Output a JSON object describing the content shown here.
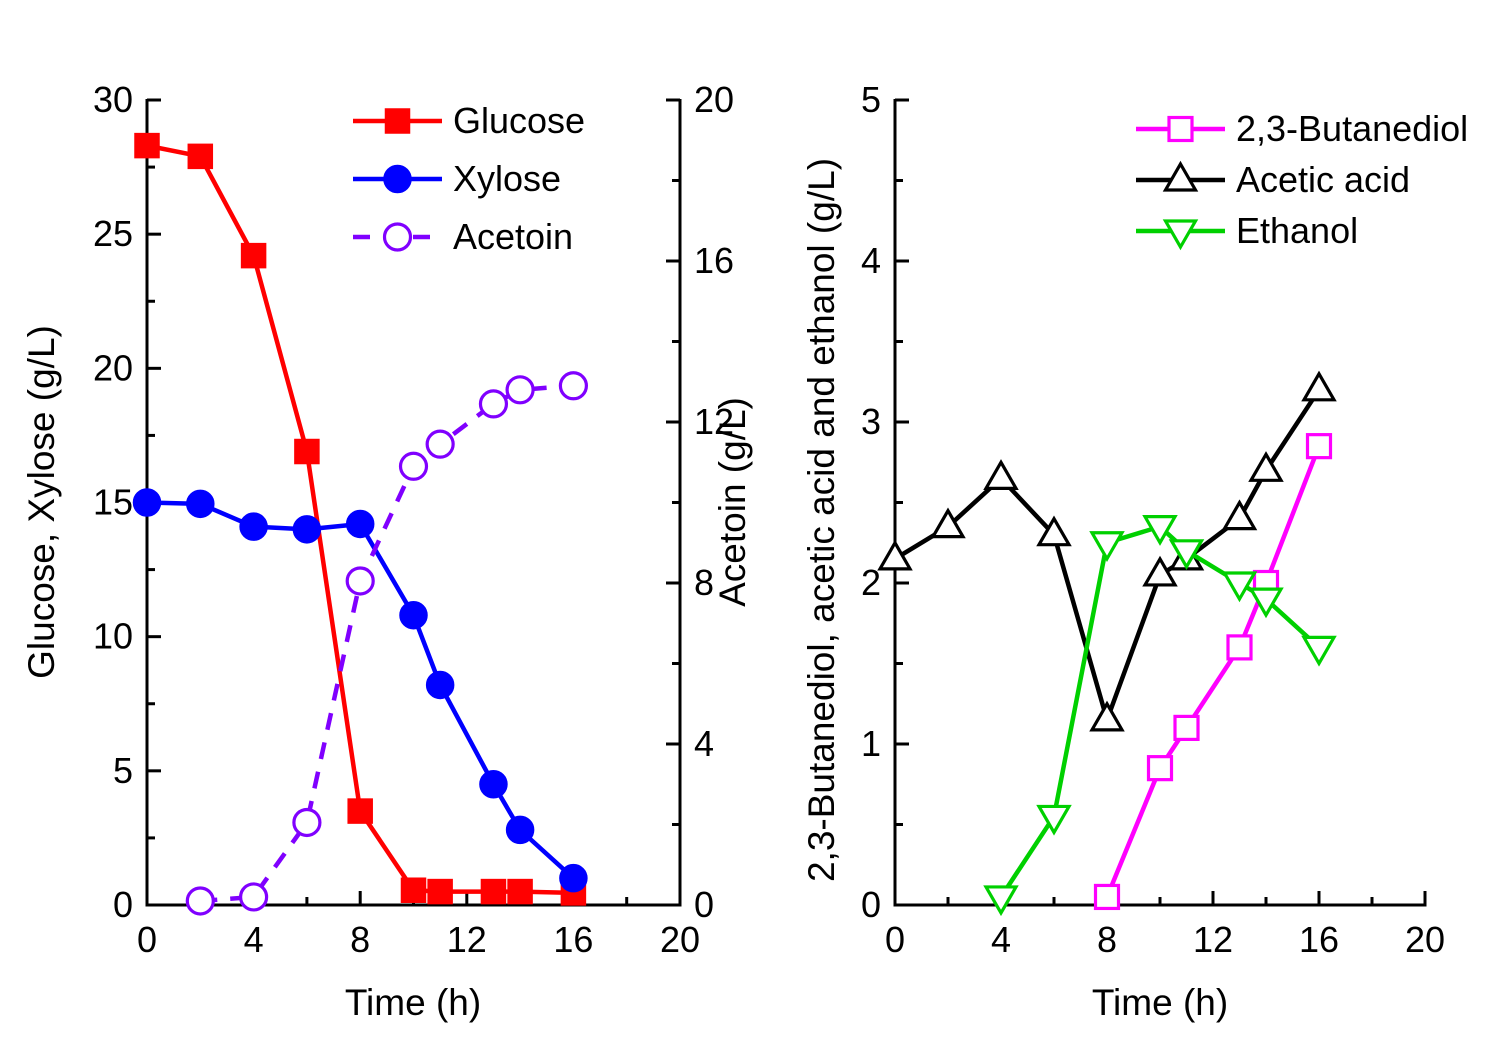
{
  "chart_data": [
    {
      "type": "line",
      "panel": "left",
      "title": "",
      "xlabel": "Time (h)",
      "ylabel_left": "Glucose, Xylose (g/L)",
      "ylabel_right": "Acetoin (g/L)",
      "xlim": [
        0,
        20
      ],
      "xticks": [
        0,
        4,
        8,
        12,
        16,
        20
      ],
      "ylim_left": [
        0,
        30
      ],
      "yticks_left": [
        0,
        5,
        10,
        15,
        20,
        25,
        30
      ],
      "ylim_right": [
        0,
        20
      ],
      "yticks_right": [
        0,
        4,
        8,
        12,
        16,
        20
      ],
      "grid": false,
      "legend_position": "top-inside",
      "series": [
        {
          "name": "Glucose",
          "axis": "left",
          "color": "#ff0000",
          "marker": "square",
          "fill": "filled",
          "line": "solid",
          "x": [
            0,
            2,
            4,
            6,
            8,
            10,
            11,
            13,
            14,
            16
          ],
          "y": [
            28.3,
            27.9,
            24.2,
            16.9,
            3.5,
            0.55,
            0.5,
            0.5,
            0.5,
            0.45
          ]
        },
        {
          "name": "Xylose",
          "axis": "left",
          "color": "#0000ff",
          "marker": "circle",
          "fill": "filled",
          "line": "solid",
          "x": [
            0,
            2,
            4,
            6,
            8,
            10,
            11,
            13,
            14,
            16
          ],
          "y": [
            15.0,
            14.95,
            14.1,
            14.0,
            14.2,
            10.8,
            8.2,
            4.5,
            2.8,
            1.0
          ]
        },
        {
          "name": "Acetoin",
          "axis": "right",
          "color": "#8000ff",
          "marker": "circle",
          "fill": "open",
          "line": "dashed",
          "x": [
            2,
            4,
            6,
            8,
            10,
            11,
            13,
            14,
            16
          ],
          "y": [
            0.1,
            0.2,
            2.05,
            8.05,
            10.9,
            11.45,
            12.45,
            12.8,
            12.9
          ]
        }
      ]
    },
    {
      "type": "line",
      "panel": "right",
      "title": "",
      "xlabel": "Time (h)",
      "ylabel_left": "2,3-Butanediol, acetic acid and ethanol (g/L)",
      "xlim": [
        0,
        20
      ],
      "xticks": [
        0,
        4,
        8,
        12,
        16,
        20
      ],
      "ylim_left": [
        0,
        5
      ],
      "yticks_left": [
        0,
        1,
        2,
        3,
        4,
        5
      ],
      "grid": false,
      "legend_position": "top-inside",
      "series": [
        {
          "name": "2,3-Butanediol",
          "axis": "left",
          "color": "#ff00ff",
          "marker": "square",
          "fill": "open",
          "line": "solid",
          "x": [
            8,
            10,
            11,
            13,
            14,
            16
          ],
          "y": [
            0.05,
            0.85,
            1.1,
            1.6,
            2.0,
            2.85
          ]
        },
        {
          "name": "Acetic acid",
          "axis": "left",
          "color": "#000000",
          "marker": "triangle-up",
          "fill": "open",
          "line": "solid",
          "x": [
            0,
            2,
            4,
            6,
            8,
            10,
            11,
            13,
            14,
            16
          ],
          "y": [
            2.15,
            2.35,
            2.65,
            2.3,
            1.15,
            2.05,
            2.15,
            2.4,
            2.7,
            3.2
          ]
        },
        {
          "name": "Ethanol",
          "axis": "left",
          "color": "#00d000",
          "marker": "triangle-down",
          "fill": "open",
          "line": "solid",
          "x": [
            4,
            6,
            8,
            10,
            11,
            13,
            14,
            16
          ],
          "y": [
            0.05,
            0.55,
            2.25,
            2.35,
            2.2,
            2.0,
            1.9,
            1.6
          ]
        }
      ]
    }
  ]
}
